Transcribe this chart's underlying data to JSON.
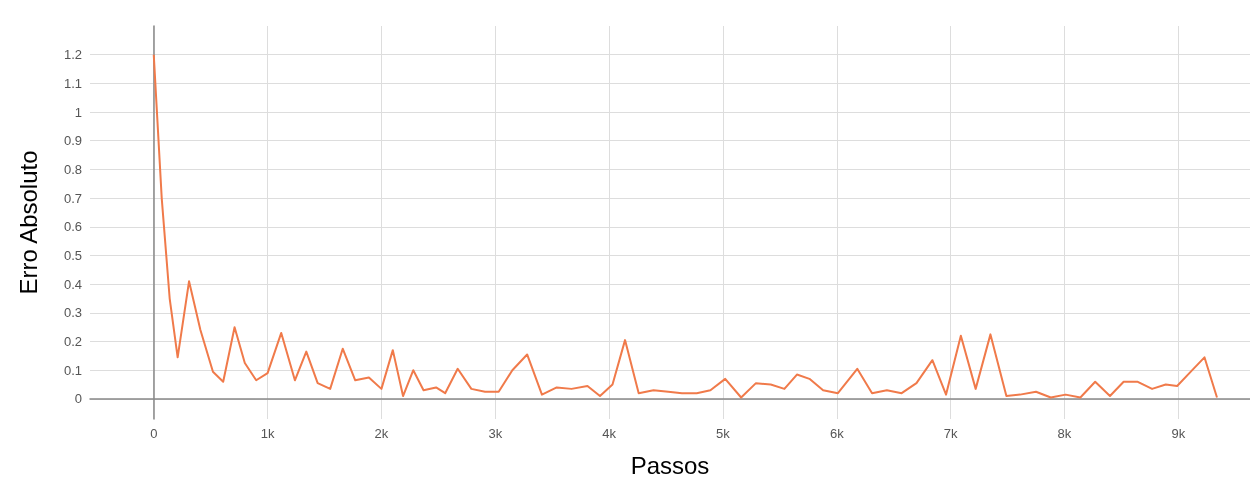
{
  "chart_data": {
    "type": "line",
    "xlabel": "Passos",
    "ylabel": "Erro Absoluto",
    "grid": true,
    "line_style": "solid",
    "marker": "none",
    "xlim": [
      -560,
      9630
    ],
    "ylim": [
      -0.07,
      1.3
    ],
    "xticks": [
      0,
      {
        "value": 1000,
        "label": "1k"
      },
      {
        "value": 2000,
        "label": "2k"
      },
      {
        "value": 3000,
        "label": "3k"
      },
      {
        "value": 4000,
        "label": "4k"
      },
      {
        "value": 5000,
        "label": "5k"
      },
      {
        "value": 6000,
        "label": "6k"
      },
      {
        "value": 7000,
        "label": "7k"
      },
      {
        "value": 8000,
        "label": "8k"
      },
      {
        "value": 9000,
        "label": "9k"
      }
    ],
    "yticks": [
      0,
      0.1,
      0.2,
      0.3,
      0.4,
      0.5,
      0.6,
      0.7,
      0.8,
      0.9,
      1,
      1.1,
      1.2
    ],
    "series": [
      {
        "color": "#f07a4a",
        "x": [
          0,
          70,
          140,
          210,
          310,
          410,
          520,
          610,
          710,
          800,
          900,
          1000,
          1120,
          1240,
          1340,
          1440,
          1550,
          1660,
          1770,
          1890,
          2000,
          2100,
          2190,
          2280,
          2370,
          2480,
          2560,
          2670,
          2790,
          2910,
          3030,
          3150,
          3280,
          3410,
          3540,
          3670,
          3810,
          3920,
          4030,
          4140,
          4260,
          4390,
          4520,
          4640,
          4770,
          4890,
          5020,
          5160,
          5290,
          5420,
          5540,
          5650,
          5760,
          5880,
          6010,
          6180,
          6310,
          6440,
          6570,
          6700,
          6840,
          6960,
          7090,
          7220,
          7350,
          7490,
          7610,
          7750,
          7880,
          8010,
          8140,
          8270,
          8400,
          8520,
          8640,
          8770,
          8890,
          8990,
          9110,
          9230,
          9340
        ],
        "values": [
          1.2,
          0.7,
          0.35,
          0.145,
          0.41,
          0.24,
          0.095,
          0.06,
          0.25,
          0.125,
          0.065,
          0.09,
          0.23,
          0.065,
          0.165,
          0.055,
          0.035,
          0.175,
          0.065,
          0.075,
          0.035,
          0.17,
          0.01,
          0.1,
          0.03,
          0.04,
          0.02,
          0.105,
          0.035,
          0.025,
          0.025,
          0.1,
          0.155,
          0.015,
          0.04,
          0.035,
          0.045,
          0.01,
          0.05,
          0.205,
          0.02,
          0.03,
          0.025,
          0.02,
          0.02,
          0.03,
          0.07,
          0.005,
          0.055,
          0.05,
          0.035,
          0.085,
          0.07,
          0.03,
          0.02,
          0.105,
          0.02,
          0.03,
          0.02,
          0.055,
          0.135,
          0.015,
          0.22,
          0.035,
          0.225,
          0.01,
          0.015,
          0.025,
          0.005,
          0.015,
          0.005,
          0.06,
          0.01,
          0.06,
          0.06,
          0.035,
          0.05,
          0.045,
          0.095,
          0.145,
          0.005
        ]
      }
    ]
  }
}
